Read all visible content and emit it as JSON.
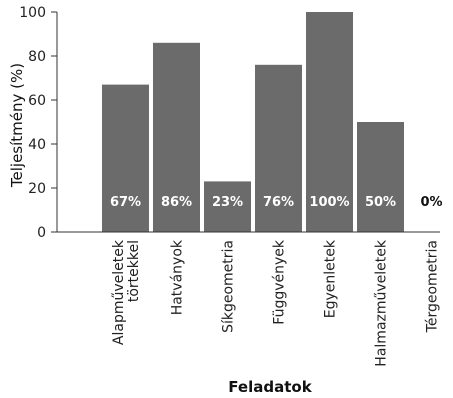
{
  "chart_data": {
    "type": "bar",
    "categories": [
      "Alapműveletek\ntörtekkel",
      "Hatványok",
      "Síkgeometria",
      "Függvények",
      "Egyenletek",
      "Halmazműveletek",
      "Térgeometria"
    ],
    "values": [
      67,
      86,
      23,
      76,
      100,
      50,
      0
    ],
    "data_labels": [
      "67%",
      "86%",
      "23%",
      "76%",
      "100%",
      "50%",
      "0%"
    ],
    "xlabel": "Feladatok",
    "ylabel": "Teljesítmény (%)",
    "ylim": [
      0,
      100
    ],
    "yticks": [
      0,
      20,
      40,
      60,
      80,
      100
    ],
    "grid": false,
    "colors": {
      "bar": "#6b6b6b",
      "label_inside": "#ffffff",
      "label_outside": "#111111",
      "axis": "#333333"
    }
  }
}
